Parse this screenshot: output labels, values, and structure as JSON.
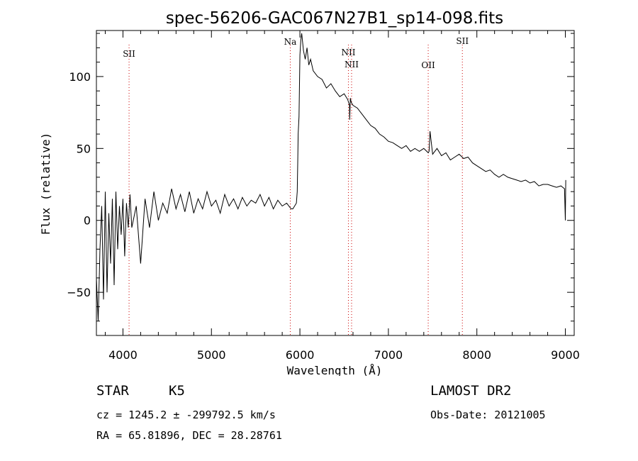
{
  "chart_data": {
    "type": "line",
    "title": "spec-56206-GAC067N27B1_sp14-098.fits",
    "xlabel": "Wavelength (Å)",
    "ylabel": "Flux (relative)",
    "xlim": [
      3700,
      9100
    ],
    "ylim": [
      -80,
      132
    ],
    "x_ticks": [
      4000,
      5000,
      6000,
      7000,
      8000,
      9000
    ],
    "y_ticks": [
      -50,
      0,
      50,
      100
    ],
    "grid": false,
    "series": [
      {
        "color": "#000000",
        "x": [
          3700,
          3720,
          3740,
          3760,
          3780,
          3800,
          3820,
          3840,
          3860,
          3880,
          3900,
          3920,
          3940,
          3960,
          3980,
          4000,
          4020,
          4040,
          4060,
          4080,
          4100,
          4150,
          4200,
          4250,
          4300,
          4350,
          4400,
          4450,
          4500,
          4550,
          4600,
          4650,
          4700,
          4750,
          4800,
          4850,
          4900,
          4950,
          5000,
          5050,
          5100,
          5150,
          5200,
          5250,
          5300,
          5350,
          5400,
          5450,
          5500,
          5550,
          5600,
          5650,
          5700,
          5750,
          5800,
          5850,
          5900,
          5920,
          5940,
          5960,
          5970,
          5975,
          5980,
          5990,
          6000,
          6010,
          6020,
          6040,
          6060,
          6080,
          6100,
          6120,
          6150,
          6200,
          6250,
          6300,
          6350,
          6400,
          6450,
          6500,
          6540,
          6560,
          6563,
          6570,
          6580,
          6600,
          6650,
          6700,
          6750,
          6800,
          6850,
          6900,
          6950,
          7000,
          7050,
          7100,
          7150,
          7200,
          7250,
          7300,
          7350,
          7400,
          7450,
          7460,
          7470,
          7500,
          7550,
          7600,
          7650,
          7700,
          7750,
          7800,
          7850,
          7900,
          7950,
          8000,
          8050,
          8100,
          8150,
          8200,
          8250,
          8300,
          8350,
          8400,
          8450,
          8500,
          8550,
          8600,
          8650,
          8700,
          8750,
          8800,
          8850,
          8900,
          8950,
          8990,
          9000,
          9005
        ],
        "y": [
          -40,
          -70,
          -20,
          10,
          -55,
          20,
          -50,
          5,
          -30,
          15,
          -45,
          20,
          -20,
          10,
          -10,
          15,
          -25,
          12,
          -5,
          18,
          -5,
          10,
          -30,
          15,
          -5,
          20,
          0,
          12,
          5,
          22,
          8,
          18,
          6,
          20,
          5,
          15,
          8,
          20,
          10,
          14,
          5,
          18,
          10,
          15,
          8,
          16,
          10,
          14,
          12,
          18,
          10,
          16,
          8,
          14,
          10,
          12,
          8,
          8,
          10,
          12,
          20,
          40,
          60,
          72,
          115,
          125,
          130,
          118,
          112,
          120,
          108,
          112,
          104,
          100,
          98,
          92,
          95,
          90,
          86,
          88,
          84,
          80,
          70,
          85,
          82,
          80,
          78,
          74,
          70,
          66,
          64,
          60,
          58,
          55,
          54,
          52,
          50,
          52,
          48,
          50,
          48,
          50,
          47,
          48,
          62,
          46,
          50,
          45,
          47,
          42,
          44,
          46,
          43,
          44,
          40,
          38,
          36,
          34,
          35,
          32,
          30,
          32,
          30,
          29,
          28,
          27,
          28,
          26,
          27,
          24,
          25,
          25,
          24,
          23,
          24,
          22,
          0,
          28
        ]
      }
    ],
    "annotations": [
      {
        "text": "SII",
        "x": 4069
      },
      {
        "text": "Na",
        "x": 5891
      },
      {
        "text": "NII",
        "x": 6548
      },
      {
        "text": "NII",
        "x": 6584
      },
      {
        "text": "OII",
        "x": 7450
      },
      {
        "text": "SII",
        "x": 7836
      }
    ]
  },
  "footer": {
    "object_class": "STAR",
    "subclass": "K5",
    "cz_line": "cz = 1245.2 ± -299792.5 km/s",
    "radec_line": "RA =  65.81896, DEC =  28.28761",
    "survey": "LAMOST DR2",
    "obs_date": "Obs-Date: 20121005"
  }
}
